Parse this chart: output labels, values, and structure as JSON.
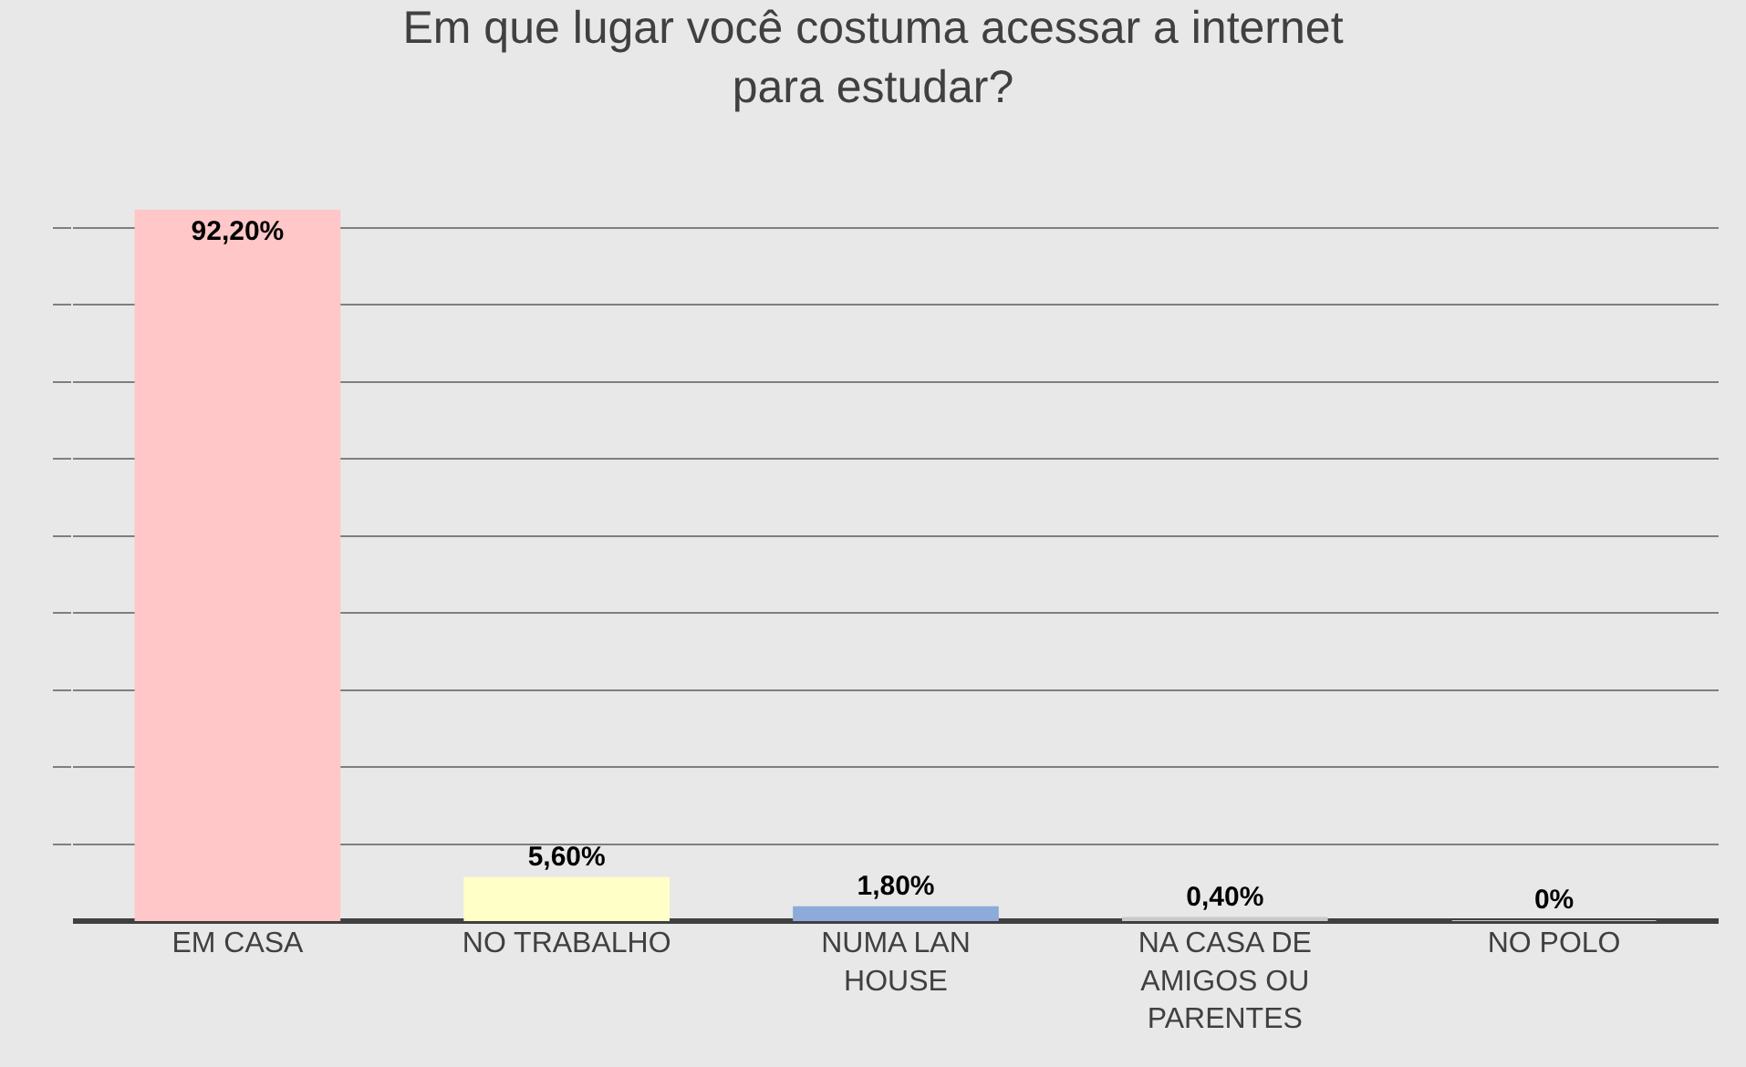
{
  "chart_data": {
    "type": "bar",
    "title": "Em que lugar você costuma acessar a internet para estudar?",
    "categories": [
      "EM CASA",
      "NO TRABALHO",
      "NUMA LAN HOUSE",
      "NA CASA DE AMIGOS OU PARENTES",
      "NO POLO"
    ],
    "values": [
      92.2,
      5.6,
      1.8,
      0.4,
      0
    ],
    "colors": [
      "#ffc7c7",
      "#ffffc7",
      "#8eaadb",
      "#c9c9c9",
      "#c9c9c9"
    ],
    "value_labels": [
      "92,20%",
      "5,60%",
      "1,80%",
      "0,40%",
      "0%"
    ],
    "yticks": [
      {
        "value": 10,
        "label": null
      },
      {
        "value": 20,
        "label": null
      },
      {
        "value": 30,
        "label": null
      },
      {
        "value": 40,
        "label": null
      },
      {
        "value": 50,
        "label": null
      },
      {
        "value": 60,
        "label": null
      },
      {
        "value": 70,
        "label": null
      },
      {
        "value": 80,
        "label": null
      },
      {
        "value": 90,
        "label": null
      }
    ],
    "grid": "y",
    "legend": false,
    "tick_labels": "x"
  }
}
